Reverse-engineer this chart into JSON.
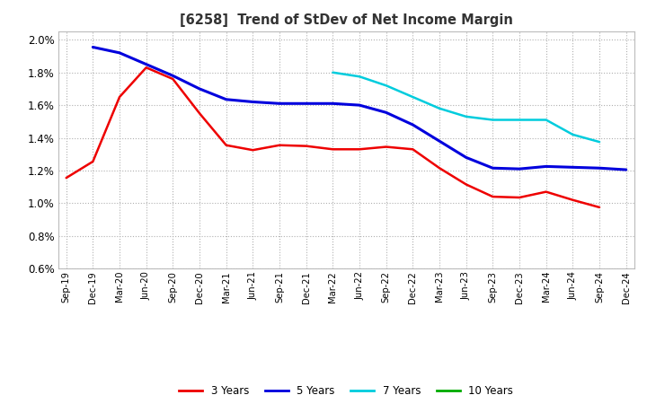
{
  "title": "[6258]  Trend of StDev of Net Income Margin",
  "background_color": "#ffffff",
  "plot_bg_color": "#ffffff",
  "grid_color": "#b0b0b0",
  "x_labels": [
    "Sep-19",
    "Dec-19",
    "Mar-20",
    "Jun-20",
    "Sep-20",
    "Dec-20",
    "Mar-21",
    "Jun-21",
    "Sep-21",
    "Dec-21",
    "Mar-22",
    "Jun-22",
    "Sep-22",
    "Dec-22",
    "Mar-23",
    "Jun-23",
    "Sep-23",
    "Dec-23",
    "Mar-24",
    "Jun-24",
    "Sep-24",
    "Dec-24"
  ],
  "ylim": [
    0.006,
    0.0205
  ],
  "yticks": [
    0.006,
    0.008,
    0.01,
    0.012,
    0.014,
    0.016,
    0.018,
    0.02
  ],
  "series": {
    "3 Years": {
      "color": "#ee0000",
      "linewidth": 1.8,
      "data": [
        0.01155,
        0.01255,
        0.0165,
        0.0183,
        0.0176,
        0.0155,
        0.01355,
        0.01325,
        0.01355,
        0.0135,
        0.0133,
        0.0133,
        0.01345,
        0.0133,
        0.01215,
        0.01115,
        0.0104,
        0.01035,
        0.0107,
        0.0102,
        0.00975,
        null
      ]
    },
    "5 Years": {
      "color": "#0000dd",
      "linewidth": 2.2,
      "data": [
        null,
        0.01955,
        0.0192,
        0.0185,
        0.0178,
        0.017,
        0.01635,
        0.0162,
        0.0161,
        0.0161,
        0.0161,
        0.016,
        0.01555,
        0.0148,
        0.0138,
        0.0128,
        0.01215,
        0.0121,
        0.01225,
        0.0122,
        0.01215,
        0.01205
      ]
    },
    "7 Years": {
      "color": "#00ccdd",
      "linewidth": 1.8,
      "data": [
        null,
        null,
        null,
        null,
        null,
        null,
        null,
        null,
        null,
        null,
        0.018,
        0.01775,
        0.0172,
        0.0165,
        0.0158,
        0.0153,
        0.0151,
        0.0151,
        0.0151,
        0.0142,
        0.01375,
        null
      ]
    },
    "10 Years": {
      "color": "#00aa00",
      "linewidth": 1.8,
      "data": [
        null,
        null,
        null,
        null,
        null,
        null,
        null,
        null,
        null,
        null,
        null,
        null,
        null,
        null,
        null,
        null,
        null,
        null,
        null,
        null,
        null,
        null
      ]
    }
  },
  "legend_entries": [
    "3 Years",
    "5 Years",
    "7 Years",
    "10 Years"
  ],
  "legend_colors": [
    "#ee0000",
    "#0000dd",
    "#00ccdd",
    "#00aa00"
  ]
}
